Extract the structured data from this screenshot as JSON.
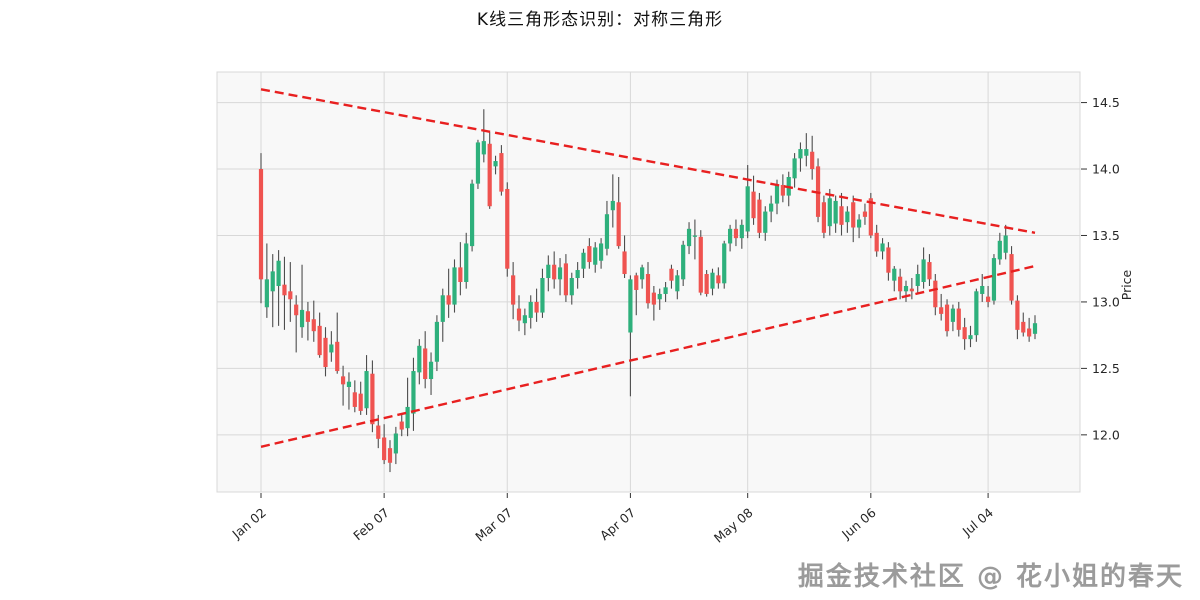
{
  "title": "K线三角形态识别：对称三角形",
  "watermark": "掘金技术社区 @ 花小姐的春天",
  "colors": {
    "up": "#2EB07C",
    "down": "#EF5350",
    "wick": "#4d4d4d",
    "trendline": "#E82020",
    "grid": "#d8d8d8",
    "plot_bg": "#f8f8f8",
    "axis_text": "#262626"
  },
  "chart_data": {
    "type": "candlestick",
    "title": "K线三角形态识别：对称三角形",
    "ylabel": "Price",
    "ylim": [
      11.57,
      14.73
    ],
    "y_ticks": [
      12.0,
      12.5,
      13.0,
      13.5,
      14.0,
      14.5
    ],
    "x_tick_labels": [
      "Jan 02",
      "Feb 07",
      "Mar 07",
      "Apr 07",
      "May 08",
      "Jun 06",
      "Jul 04"
    ],
    "x_tick_indices": [
      0,
      21,
      42,
      63,
      83,
      104,
      124
    ],
    "grid": true,
    "legend": false,
    "candles_ohlc": [
      [
        14.0,
        14.12,
        12.99,
        13.17
      ],
      [
        12.96,
        13.44,
        12.88,
        13.17
      ],
      [
        13.08,
        13.36,
        12.81,
        13.23
      ],
      [
        13.12,
        13.39,
        12.82,
        13.31
      ],
      [
        13.13,
        13.34,
        12.79,
        13.05
      ],
      [
        13.08,
        13.3,
        12.85,
        13.02
      ],
      [
        12.98,
        13.05,
        12.62,
        12.9
      ],
      [
        12.81,
        13.28,
        12.73,
        12.94
      ],
      [
        12.93,
        13.0,
        12.71,
        12.85
      ],
      [
        12.87,
        13.01,
        12.7,
        12.78
      ],
      [
        12.82,
        12.92,
        12.58,
        12.6
      ],
      [
        12.73,
        12.81,
        12.44,
        12.51
      ],
      [
        12.62,
        12.78,
        12.55,
        12.68
      ],
      [
        12.7,
        12.92,
        12.46,
        12.48
      ],
      [
        12.44,
        12.52,
        12.22,
        12.38
      ],
      [
        12.36,
        12.47,
        12.19,
        12.4
      ],
      [
        12.32,
        12.41,
        12.17,
        12.21
      ],
      [
        12.31,
        12.4,
        12.15,
        12.18
      ],
      [
        12.2,
        12.6,
        12.15,
        12.48
      ],
      [
        12.46,
        12.56,
        12.02,
        12.08
      ],
      [
        12.07,
        12.15,
        11.9,
        11.97
      ],
      [
        11.98,
        12.08,
        11.78,
        11.81
      ],
      [
        11.9,
        11.96,
        11.72,
        11.79
      ],
      [
        11.86,
        12.06,
        11.78,
        12.01
      ],
      [
        12.1,
        12.16,
        11.99,
        12.04
      ],
      [
        12.05,
        12.43,
        11.99,
        12.21
      ],
      [
        12.16,
        12.58,
        12.03,
        12.48
      ],
      [
        12.47,
        12.72,
        12.38,
        12.67
      ],
      [
        12.65,
        12.78,
        12.35,
        12.42
      ],
      [
        12.42,
        12.62,
        12.3,
        12.55
      ],
      [
        12.55,
        12.9,
        12.48,
        12.85
      ],
      [
        12.85,
        13.1,
        12.7,
        13.05
      ],
      [
        13.05,
        13.25,
        12.88,
        12.98
      ],
      [
        12.98,
        13.32,
        12.92,
        13.26
      ],
      [
        13.26,
        13.45,
        13.05,
        13.15
      ],
      [
        13.15,
        13.52,
        13.1,
        13.44
      ],
      [
        13.42,
        13.92,
        13.38,
        13.89
      ],
      [
        13.89,
        14.22,
        13.85,
        14.2
      ],
      [
        14.11,
        14.45,
        14.05,
        14.21
      ],
      [
        14.19,
        14.28,
        13.7,
        13.72
      ],
      [
        14.02,
        14.1,
        13.96,
        14.06
      ],
      [
        14.12,
        14.18,
        13.8,
        13.83
      ],
      [
        13.85,
        13.9,
        13.19,
        13.25
      ],
      [
        13.2,
        13.3,
        12.87,
        12.98
      ],
      [
        12.95,
        13.05,
        12.78,
        12.86
      ],
      [
        12.84,
        12.95,
        12.75,
        12.9
      ],
      [
        12.88,
        13.05,
        12.8,
        13.0
      ],
      [
        13.0,
        13.1,
        12.85,
        12.92
      ],
      [
        12.92,
        13.25,
        12.88,
        13.18
      ],
      [
        13.18,
        13.35,
        13.08,
        13.28
      ],
      [
        13.28,
        13.38,
        13.1,
        13.17
      ],
      [
        13.17,
        13.33,
        13.05,
        13.26
      ],
      [
        13.29,
        13.36,
        13.0,
        13.05
      ],
      [
        13.05,
        13.22,
        12.98,
        13.18
      ],
      [
        13.18,
        13.3,
        13.1,
        13.24
      ],
      [
        13.25,
        13.4,
        13.18,
        13.37
      ],
      [
        13.42,
        13.48,
        13.25,
        13.3
      ],
      [
        13.28,
        13.45,
        13.22,
        13.41
      ],
      [
        13.31,
        13.48,
        13.25,
        13.44
      ],
      [
        13.4,
        13.76,
        13.35,
        13.66
      ],
      [
        13.69,
        13.96,
        13.56,
        13.76
      ],
      [
        13.75,
        13.94,
        13.4,
        13.42
      ],
      [
        13.38,
        13.5,
        13.18,
        13.21
      ],
      [
        12.77,
        13.2,
        12.29,
        13.17
      ],
      [
        13.2,
        13.22,
        12.9,
        13.09
      ],
      [
        13.17,
        13.28,
        13.1,
        13.26
      ],
      [
        13.21,
        13.3,
        12.95,
        12.99
      ],
      [
        13.07,
        13.12,
        12.86,
        12.98
      ],
      [
        13.02,
        13.1,
        12.94,
        13.06
      ],
      [
        13.06,
        13.15,
        13.0,
        13.11
      ],
      [
        13.25,
        13.28,
        13.1,
        13.16
      ],
      [
        13.08,
        13.24,
        13.02,
        13.2
      ],
      [
        13.17,
        13.46,
        13.12,
        13.43
      ],
      [
        13.42,
        13.6,
        13.36,
        13.55
      ],
      [
        13.49,
        13.62,
        13.32,
        13.5
      ],
      [
        13.49,
        13.54,
        13.05,
        13.07
      ],
      [
        13.21,
        13.24,
        13.04,
        13.06
      ],
      [
        13.1,
        13.25,
        13.05,
        13.22
      ],
      [
        13.2,
        13.26,
        13.1,
        13.14
      ],
      [
        13.14,
        13.46,
        13.1,
        13.44
      ],
      [
        13.44,
        13.58,
        13.38,
        13.55
      ],
      [
        13.55,
        13.62,
        13.42,
        13.48
      ],
      [
        13.48,
        13.62,
        13.4,
        13.58
      ],
      [
        13.53,
        14.03,
        13.48,
        13.87
      ],
      [
        13.83,
        13.95,
        13.58,
        13.63
      ],
      [
        13.77,
        13.82,
        13.48,
        13.52
      ],
      [
        13.52,
        13.72,
        13.46,
        13.68
      ],
      [
        13.68,
        13.8,
        13.6,
        13.74
      ],
      [
        13.74,
        13.92,
        13.66,
        13.88
      ],
      [
        13.88,
        13.96,
        13.75,
        13.8
      ],
      [
        13.8,
        13.98,
        13.72,
        13.94
      ],
      [
        13.93,
        14.12,
        13.86,
        14.08
      ],
      [
        14.08,
        14.2,
        13.98,
        14.15
      ],
      [
        14.1,
        14.27,
        14.02,
        14.15
      ],
      [
        14.13,
        14.25,
        13.92,
        14.0
      ],
      [
        14.02,
        14.08,
        13.6,
        13.64
      ],
      [
        13.75,
        13.8,
        13.48,
        13.52
      ],
      [
        13.57,
        13.85,
        13.5,
        13.78
      ],
      [
        13.59,
        13.8,
        13.52,
        13.76
      ],
      [
        13.72,
        13.82,
        13.5,
        13.58
      ],
      [
        13.6,
        13.72,
        13.52,
        13.68
      ],
      [
        13.75,
        13.8,
        13.45,
        13.56
      ],
      [
        13.56,
        13.66,
        13.48,
        13.62
      ],
      [
        13.68,
        13.74,
        13.58,
        13.64
      ],
      [
        13.78,
        13.82,
        13.48,
        13.5
      ],
      [
        13.52,
        13.58,
        13.34,
        13.38
      ],
      [
        13.38,
        13.48,
        13.32,
        13.44
      ],
      [
        13.41,
        13.45,
        13.16,
        13.22
      ],
      [
        13.16,
        13.27,
        13.08,
        13.25
      ],
      [
        13.19,
        13.25,
        13.02,
        13.08
      ],
      [
        13.08,
        13.16,
        13.0,
        13.12
      ],
      [
        13.1,
        13.18,
        13.02,
        13.08
      ],
      [
        13.12,
        13.28,
        13.06,
        13.21
      ],
      [
        13.15,
        13.41,
        13.1,
        13.32
      ],
      [
        13.3,
        13.36,
        13.12,
        13.17
      ],
      [
        13.16,
        13.21,
        12.9,
        12.96
      ],
      [
        12.96,
        13.06,
        12.86,
        12.91
      ],
      [
        12.98,
        13.02,
        12.74,
        12.78
      ],
      [
        12.85,
        12.98,
        12.78,
        12.95
      ],
      [
        12.95,
        13.0,
        12.74,
        12.79
      ],
      [
        12.81,
        12.88,
        12.64,
        12.72
      ],
      [
        12.72,
        12.82,
        12.66,
        12.75
      ],
      [
        12.75,
        13.1,
        12.7,
        13.08
      ],
      [
        13.06,
        13.21,
        13.0,
        13.12
      ],
      [
        13.04,
        13.12,
        12.96,
        13.0
      ],
      [
        13.01,
        13.36,
        12.98,
        13.33
      ],
      [
        13.32,
        13.52,
        13.28,
        13.46
      ],
      [
        13.37,
        13.58,
        13.32,
        13.5
      ],
      [
        13.36,
        13.42,
        12.98,
        13.01
      ],
      [
        13.01,
        13.05,
        12.72,
        12.79
      ],
      [
        12.85,
        12.92,
        12.74,
        12.77
      ],
      [
        12.8,
        12.88,
        12.7,
        12.74
      ],
      [
        12.76,
        12.9,
        12.72,
        12.84
      ]
    ],
    "trendlines": [
      {
        "name": "upper-descending-resistance",
        "style": "dashed",
        "color": "#E82020",
        "start_index": 0,
        "start_price": 14.6,
        "end_index": 132,
        "end_price": 13.52
      },
      {
        "name": "lower-ascending-support",
        "style": "dashed",
        "color": "#E82020",
        "start_index": 0,
        "start_price": 11.91,
        "end_index": 132,
        "end_price": 13.27
      }
    ]
  }
}
